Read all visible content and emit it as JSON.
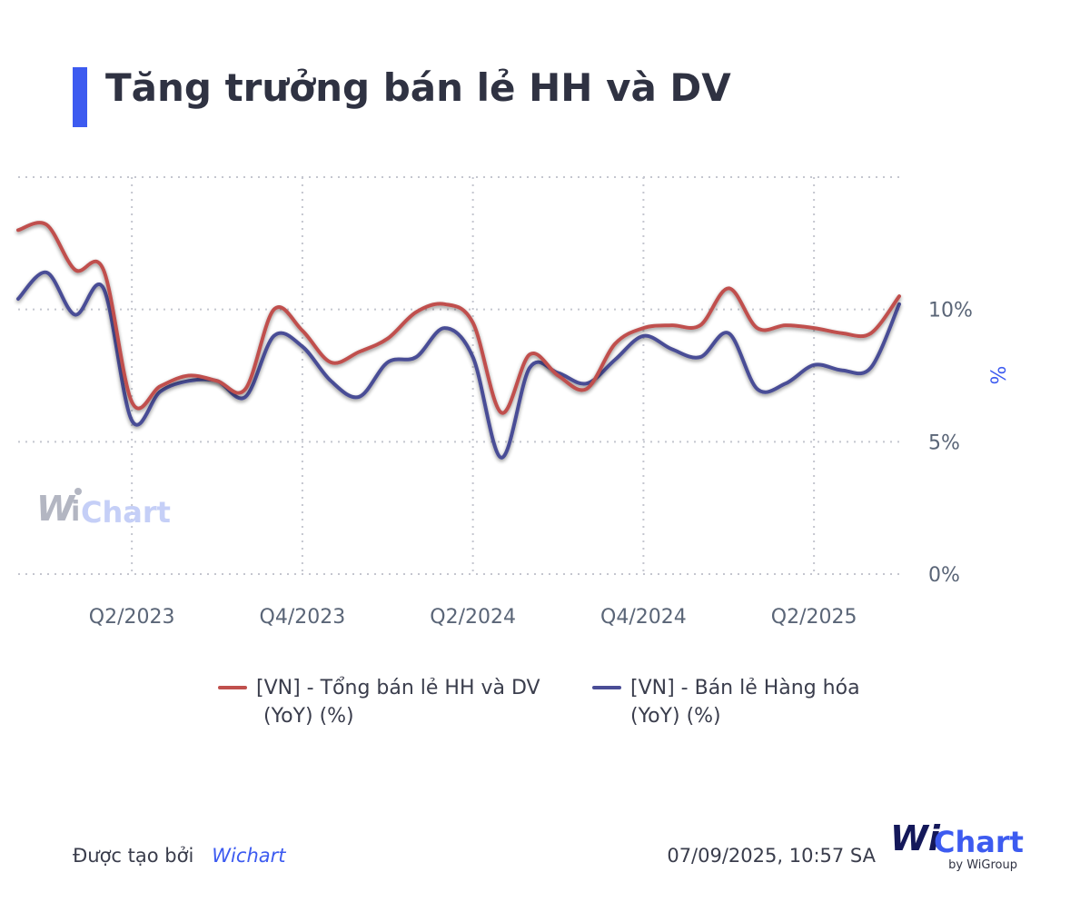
{
  "title": "Tăng trưởng bán lẻ HH và DV",
  "colors": {
    "accent": "#3d5bf0",
    "series1": "#c0504d",
    "series2": "#4a4d96"
  },
  "chart_data": {
    "type": "line",
    "x_ticks": [
      "Q2/2023",
      "Q4/2023",
      "Q2/2024",
      "Q4/2024",
      "Q2/2025"
    ],
    "y_ticks": [
      "0%",
      "5%",
      "10%"
    ],
    "ylabel": "%",
    "ylim": [
      0,
      15
    ],
    "grid": true,
    "legend_position": "bottom",
    "x_start": "2023-01",
    "x_end": "2025-08",
    "series": [
      {
        "name": "[VN] - Tổng bán lẻ HH và DV (YoY) (%)",
        "name_line1": "[VN] - Tổng bán lẻ HH và DV",
        "name_line2": "(YoY) (%)",
        "x": [
          "2023-01",
          "2023-02",
          "2023-03",
          "2023-04",
          "2023-05",
          "2023-06",
          "2023-07",
          "2023-08",
          "2023-09",
          "2023-10",
          "2023-11",
          "2023-12",
          "2024-01",
          "2024-02",
          "2024-03",
          "2024-04",
          "2024-05",
          "2024-06",
          "2024-07",
          "2024-08",
          "2024-09",
          "2024-10",
          "2024-11",
          "2024-12",
          "2025-01",
          "2025-02",
          "2025-03",
          "2025-04",
          "2025-05",
          "2025-06",
          "2025-07",
          "2025-08"
        ],
        "values": [
          13.0,
          13.2,
          11.5,
          11.5,
          6.5,
          7.1,
          7.5,
          7.3,
          7.0,
          10.0,
          9.2,
          8.0,
          8.4,
          8.9,
          9.9,
          10.2,
          9.5,
          6.1,
          8.3,
          7.5,
          7.0,
          8.7,
          9.3,
          9.4,
          9.4,
          10.8,
          9.3,
          9.4,
          9.3,
          9.1,
          9.1,
          10.5
        ]
      },
      {
        "name": "[VN] - Bán lẻ Hàng hóa (YoY) (%)",
        "name_line1": "[VN] - Bán lẻ Hàng hóa",
        "name_line2": "(YoY) (%)",
        "x": [
          "2023-01",
          "2023-02",
          "2023-03",
          "2023-04",
          "2023-05",
          "2023-06",
          "2023-07",
          "2023-08",
          "2023-09",
          "2023-10",
          "2023-11",
          "2023-12",
          "2024-01",
          "2024-02",
          "2024-03",
          "2024-04",
          "2024-05",
          "2024-06",
          "2024-07",
          "2024-08",
          "2024-09",
          "2024-10",
          "2024-11",
          "2024-12",
          "2025-01",
          "2025-02",
          "2025-03",
          "2025-04",
          "2025-05",
          "2025-06",
          "2025-07",
          "2025-08"
        ],
        "values": [
          10.4,
          11.4,
          9.8,
          10.8,
          5.8,
          6.9,
          7.3,
          7.3,
          6.7,
          9.0,
          8.6,
          7.3,
          6.7,
          8.0,
          8.2,
          9.3,
          8.2,
          4.4,
          7.8,
          7.6,
          7.2,
          8.1,
          9.0,
          8.5,
          8.2,
          9.1,
          7.0,
          7.2,
          7.9,
          7.7,
          7.8,
          10.2
        ]
      }
    ]
  },
  "footer": {
    "created_by_label": "Được tạo bởi",
    "created_by_brand": "Wichart",
    "timestamp": "07/09/2025, 10:57 SA"
  },
  "watermark": "WiChart",
  "logo": {
    "text_wi": "Wi",
    "text_chart": "Chart",
    "subtitle": "by WiGroup"
  }
}
